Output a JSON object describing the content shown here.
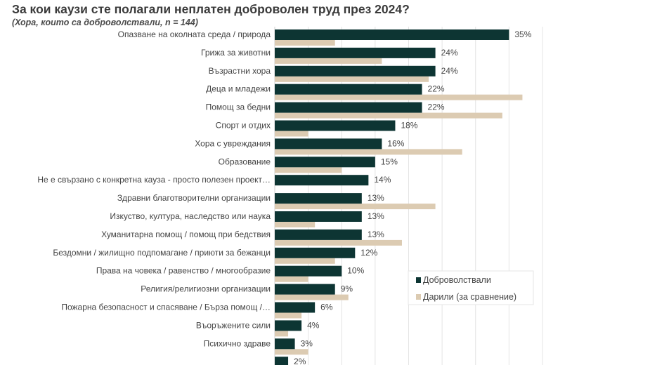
{
  "chart_data": {
    "type": "bar",
    "orientation": "horizontal",
    "title": "За кои каузи сте полагали неплатен доброволен труд през 2024?",
    "subtitle": "(Хора, които са доброволствали, n = 144)",
    "categories": [
      "Опазване на околната среда / природа",
      "Грижа за животни",
      "Възрастни хора",
      "Деца и младежи",
      "Помощ за бедни",
      "Спорт и отдих",
      "Хора с увреждания",
      "Образование",
      "Не е свързано с конкретна кауза - просто полезен проект…",
      "Здравни благотворителни организации",
      "Изкуство, култура, наследство или наука",
      "Хуманитарна помощ / помощ при бедствия",
      "Бездомни / жилищно подпомагане / приюти за бежанци",
      "Права на човека / равенство / многообразие",
      "Религия/религиозни организации",
      "Пожарна безопасност и спасяване / Бърза помощ /…",
      "Въоръжените сили",
      "Психично здраве",
      ""
    ],
    "series": [
      {
        "name": "Доброволствали",
        "color": "#0d3533",
        "values": [
          35,
          24,
          24,
          22,
          22,
          18,
          16,
          15,
          14,
          13,
          13,
          13,
          12,
          10,
          9,
          6,
          4,
          3,
          2
        ],
        "labels": [
          "35%",
          "24%",
          "24%",
          "22%",
          "22%",
          "18%",
          "16%",
          "15%",
          "14%",
          "13%",
          "13%",
          "13%",
          "12%",
          "10%",
          "9%",
          "6%",
          "4%",
          "3%",
          "2%"
        ]
      },
      {
        "name": "Дарили (за сравнение)",
        "color": "#dccbb2",
        "values": [
          9,
          16,
          23,
          37,
          34,
          5,
          28,
          10,
          0,
          24,
          6,
          19,
          9,
          5,
          11,
          4,
          2,
          5,
          null
        ]
      }
    ],
    "xlim": [
      0,
      40
    ],
    "grid": true,
    "gridline_step": 5,
    "legend_position": "bottom-right"
  }
}
